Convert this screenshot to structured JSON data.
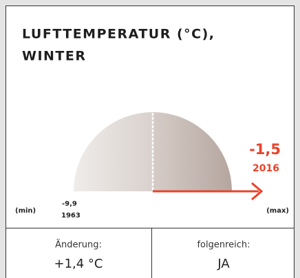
{
  "title": {
    "lines": [
      "LUFTTEMPERATUR (°C),",
      "WINTER"
    ]
  },
  "gauge": {
    "min_label": "(min)",
    "max_label": "(max)",
    "min_value": "-9,9",
    "min_year": "1963",
    "current_value": "-1,5",
    "current_year": "2016"
  },
  "stats": [
    {
      "label": "Änderung:",
      "value": "+1,4 °C"
    },
    {
      "label": "folgenreich:",
      "value": "JA"
    }
  ]
}
